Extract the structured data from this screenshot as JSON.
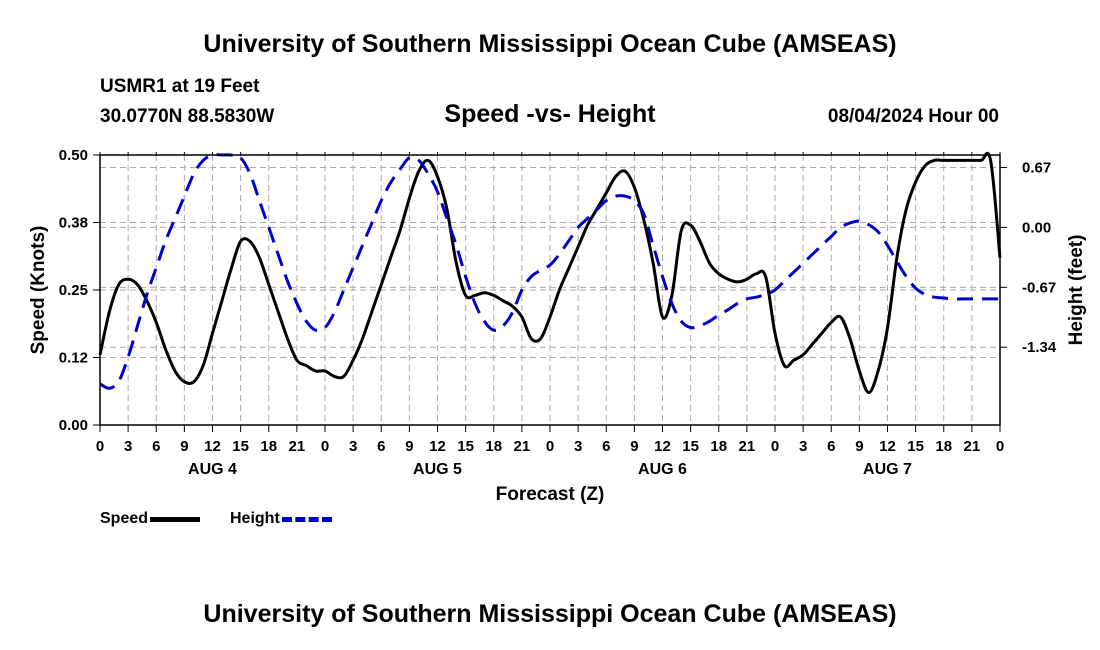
{
  "header": {
    "title": "University of Southern Mississippi Ocean Cube (AMSEAS)",
    "station": "USMR1 at 19 Feet",
    "coords": "30.0770N  88.5830W",
    "chart_title": "Speed -vs- Height",
    "date": "08/04/2024 Hour 00"
  },
  "footer": {
    "title": "University of Southern Mississippi Ocean Cube (AMSEAS)"
  },
  "legend": {
    "speed_label": "Speed",
    "height_label": "Height"
  },
  "colors": {
    "speed": "#000000",
    "height": "#0000cc",
    "grid": "#aaaaaa"
  },
  "chart_data": {
    "type": "line",
    "title": "Speed -vs- Height",
    "xlabel": "Forecast (Z)",
    "ylabel": "Speed (Knots)",
    "y2label": "Height (feet)",
    "xlim": [
      0,
      96
    ],
    "ylim": [
      0,
      0.5
    ],
    "y2lim": [
      -2.21,
      0.81
    ],
    "yticks": [
      "0.00",
      "0.12",
      "0.25",
      "0.38",
      "0.50"
    ],
    "ytick_values": [
      0,
      0.125,
      0.25,
      0.375,
      0.5
    ],
    "y2ticks": [
      "0.67",
      "0.00",
      "-0.67",
      "-1.34"
    ],
    "y2tick_values": [
      0.67,
      0,
      -0.67,
      -1.34
    ],
    "xtick_labels": [
      "0",
      "3",
      "6",
      "9",
      "12",
      "15",
      "18",
      "21",
      "0",
      "3",
      "6",
      "9",
      "12",
      "15",
      "18",
      "21",
      "0",
      "3",
      "6",
      "9",
      "12",
      "15",
      "18",
      "21",
      "0",
      "3",
      "6",
      "9",
      "12",
      "15",
      "18",
      "21",
      "0"
    ],
    "xtick_step_hours": 3,
    "day_labels": [
      {
        "label": "AUG 4",
        "hour": 12
      },
      {
        "label": "AUG 5",
        "hour": 36
      },
      {
        "label": "AUG 6",
        "hour": 60
      },
      {
        "label": "AUG 7",
        "hour": 84
      }
    ],
    "grid": true,
    "legend_position": "bottom-left",
    "series": [
      {
        "name": "Speed",
        "axis": "left",
        "style": "solid",
        "x": [
          0,
          1,
          2,
          3,
          4,
          5,
          6,
          7,
          8,
          9,
          10,
          11,
          12,
          13,
          14,
          15,
          16,
          17,
          18,
          19,
          20,
          21,
          22,
          23,
          24,
          25,
          26,
          27,
          28,
          29,
          30,
          31,
          32,
          33,
          34,
          35,
          36,
          37,
          38,
          39,
          40,
          41,
          42,
          43,
          44,
          45,
          46,
          47,
          48,
          49,
          50,
          51,
          52,
          53,
          54,
          55,
          56,
          57,
          58,
          59,
          60,
          61,
          62,
          63,
          64,
          65,
          66,
          67,
          68,
          69,
          70,
          71,
          72,
          73,
          74,
          75,
          76,
          77,
          78,
          79,
          80,
          81,
          82,
          83,
          84,
          85,
          86,
          87,
          88,
          89,
          90,
          91,
          92,
          93,
          94,
          95,
          96
        ],
        "values": [
          0.13,
          0.21,
          0.26,
          0.27,
          0.26,
          0.23,
          0.19,
          0.14,
          0.1,
          0.08,
          0.08,
          0.11,
          0.17,
          0.23,
          0.29,
          0.34,
          0.34,
          0.31,
          0.26,
          0.21,
          0.16,
          0.12,
          0.11,
          0.1,
          0.1,
          0.09,
          0.09,
          0.12,
          0.16,
          0.21,
          0.26,
          0.31,
          0.36,
          0.42,
          0.47,
          0.49,
          0.46,
          0.4,
          0.3,
          0.24,
          0.24,
          0.245,
          0.24,
          0.23,
          0.22,
          0.2,
          0.16,
          0.16,
          0.2,
          0.25,
          0.29,
          0.33,
          0.37,
          0.4,
          0.43,
          0.46,
          0.47,
          0.44,
          0.38,
          0.3,
          0.2,
          0.24,
          0.36,
          0.37,
          0.34,
          0.3,
          0.28,
          0.27,
          0.265,
          0.27,
          0.28,
          0.275,
          0.17,
          0.11,
          0.12,
          0.13,
          0.15,
          0.17,
          0.19,
          0.2,
          0.16,
          0.1,
          0.06,
          0.1,
          0.18,
          0.31,
          0.4,
          0.45,
          0.48,
          0.49,
          0.49,
          0.49,
          0.49,
          0.49,
          0.49,
          0.49,
          0.31
        ]
      },
      {
        "name": "Height",
        "axis": "right",
        "style": "dashed",
        "x": [
          0,
          1,
          2,
          3,
          4,
          5,
          6,
          7,
          8,
          9,
          10,
          11,
          12,
          13,
          14,
          15,
          16,
          17,
          18,
          19,
          20,
          21,
          22,
          23,
          24,
          25,
          26,
          27,
          28,
          29,
          30,
          31,
          32,
          33,
          34,
          35,
          36,
          37,
          38,
          39,
          40,
          41,
          42,
          43,
          44,
          45,
          46,
          47,
          48,
          49,
          50,
          51,
          52,
          53,
          54,
          55,
          56,
          57,
          58,
          59,
          60,
          61,
          62,
          63,
          64,
          65,
          66,
          67,
          68,
          69,
          70,
          71,
          72,
          73,
          74,
          75,
          76,
          77,
          78,
          79,
          80,
          81,
          82,
          83,
          84,
          85,
          86,
          87,
          88,
          89,
          90,
          91,
          92,
          93,
          94,
          95,
          96
        ],
        "values": [
          -1.75,
          -1.8,
          -1.72,
          -1.45,
          -1.1,
          -0.75,
          -0.45,
          -0.15,
          0.1,
          0.35,
          0.6,
          0.75,
          0.85,
          0.88,
          0.86,
          0.78,
          0.6,
          0.3,
          0,
          -0.3,
          -0.6,
          -0.85,
          -1.05,
          -1.15,
          -1.12,
          -0.95,
          -0.7,
          -0.45,
          -0.2,
          0.05,
          0.3,
          0.5,
          0.65,
          0.78,
          0.75,
          0.6,
          0.4,
          0.1,
          -0.2,
          -0.55,
          -0.85,
          -1.05,
          -1.15,
          -1.1,
          -0.95,
          -0.7,
          -0.55,
          -0.48,
          -0.42,
          -0.3,
          -0.15,
          0,
          0.1,
          0.2,
          0.3,
          0.35,
          0.35,
          0.3,
          0.15,
          -0.2,
          -0.55,
          -0.85,
          -1.05,
          -1.12,
          -1.1,
          -1.05,
          -0.98,
          -0.92,
          -0.85,
          -0.8,
          -0.78,
          -0.75,
          -0.7,
          -0.6,
          -0.5,
          -0.4,
          -0.3,
          -0.2,
          -0.1,
          0,
          0.05,
          0.07,
          0.03,
          -0.05,
          -0.2,
          -0.38,
          -0.55,
          -0.68,
          -0.75,
          -0.78,
          -0.79,
          -0.8,
          -0.8,
          -0.8,
          -0.8,
          -0.8,
          -0.8
        ]
      }
    ]
  }
}
